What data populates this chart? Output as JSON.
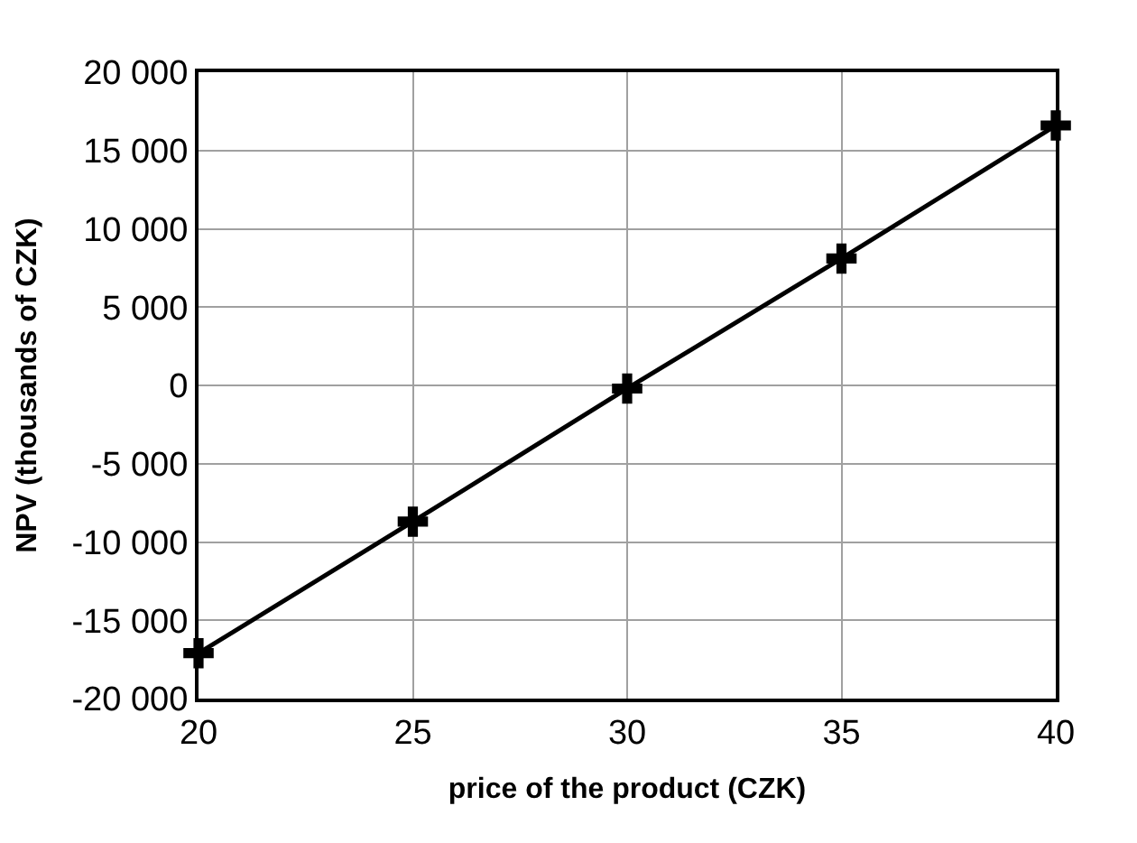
{
  "chart_data": {
    "type": "line",
    "xlabel": "price of the product (CZK)",
    "ylabel": "NPV (thousands of CZK)",
    "x": [
      20,
      25,
      30,
      35,
      40
    ],
    "series": [
      {
        "color": "#000000",
        "values": [
          -17100,
          -8700,
          -200,
          8100,
          16600
        ]
      }
    ],
    "xlim": [
      20,
      40
    ],
    "xticks": [
      20,
      25,
      30,
      35,
      40
    ],
    "ylim": [
      -20000,
      20000
    ],
    "yticks": [
      {
        "value": -20000,
        "label": "-20 000"
      },
      {
        "value": -15000,
        "label": "-15 000"
      },
      {
        "value": -10000,
        "label": "-10 000"
      },
      {
        "value": -5000,
        "label": "-5 000"
      },
      0,
      {
        "value": 5000,
        "label": "5 000"
      },
      {
        "value": 10000,
        "label": "10 000"
      },
      {
        "value": 15000,
        "label": "15 000"
      },
      {
        "value": 20000,
        "label": "20 000"
      }
    ],
    "grid": true,
    "legend": false,
    "marker": "cross",
    "line_style": "solid"
  }
}
